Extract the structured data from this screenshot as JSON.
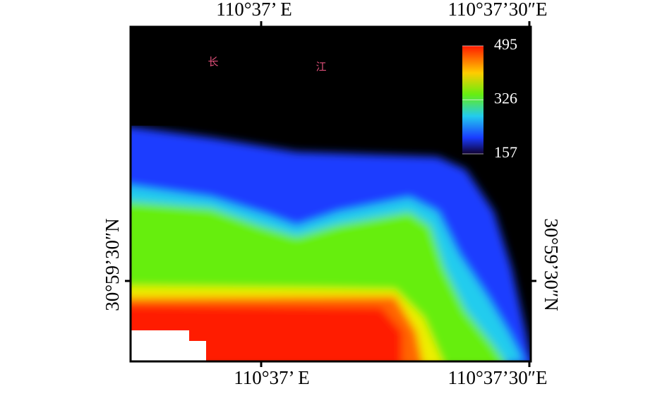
{
  "axes": {
    "top": [
      "110°37’ E",
      "110°37’30″E"
    ],
    "bottom": [
      "110°37’ E",
      "110°37’30″E"
    ],
    "left": "30°59’30″N",
    "right": "30°59’30″N"
  },
  "map_labels": [
    "长",
    "江"
  ],
  "colorbar": {
    "range": [
      157,
      495
    ],
    "ticks": [
      495,
      326,
      157
    ]
  }
}
